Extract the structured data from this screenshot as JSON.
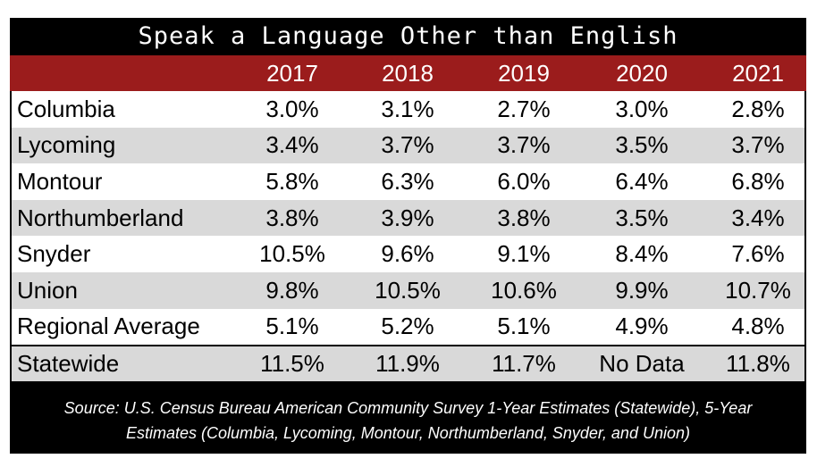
{
  "chart_data": {
    "type": "table",
    "title": "Speak a Language Other than English",
    "columns": [
      "2017",
      "2018",
      "2019",
      "2020",
      "2021"
    ],
    "rows": [
      {
        "name": "Columbia",
        "values": [
          "3.0%",
          "3.1%",
          "2.7%",
          "3.0%",
          "2.8%"
        ]
      },
      {
        "name": "Lycoming",
        "values": [
          "3.4%",
          "3.7%",
          "3.7%",
          "3.5%",
          "3.7%"
        ]
      },
      {
        "name": "Montour",
        "values": [
          "5.8%",
          "6.3%",
          "6.0%",
          "6.4%",
          "6.8%"
        ]
      },
      {
        "name": "Northumberland",
        "values": [
          "3.8%",
          "3.9%",
          "3.8%",
          "3.5%",
          "3.4%"
        ]
      },
      {
        "name": "Snyder",
        "values": [
          "10.5%",
          "9.6%",
          "9.1%",
          "8.4%",
          "7.6%"
        ]
      },
      {
        "name": "Union",
        "values": [
          "9.8%",
          "10.5%",
          "10.6%",
          "9.9%",
          "10.7%"
        ]
      },
      {
        "name": "Regional Average",
        "values": [
          "5.1%",
          "5.2%",
          "5.1%",
          "4.9%",
          "4.8%"
        ]
      },
      {
        "name": "Statewide",
        "values": [
          "11.5%",
          "11.9%",
          "11.7%",
          "No Data",
          "11.8%"
        ]
      }
    ],
    "source_line1": "Source: U.S. Census Bureau American Community Survey 1-Year Estimates (Statewide), 5-Year",
    "source_line2": "Estimates (Columbia, Lycoming, Montour, Northumberland, Snyder, and Union)"
  },
  "colors": {
    "header_background": "#9b1c1c",
    "frame_background": "#000000",
    "stripe_gray": "#d9d9d9"
  }
}
